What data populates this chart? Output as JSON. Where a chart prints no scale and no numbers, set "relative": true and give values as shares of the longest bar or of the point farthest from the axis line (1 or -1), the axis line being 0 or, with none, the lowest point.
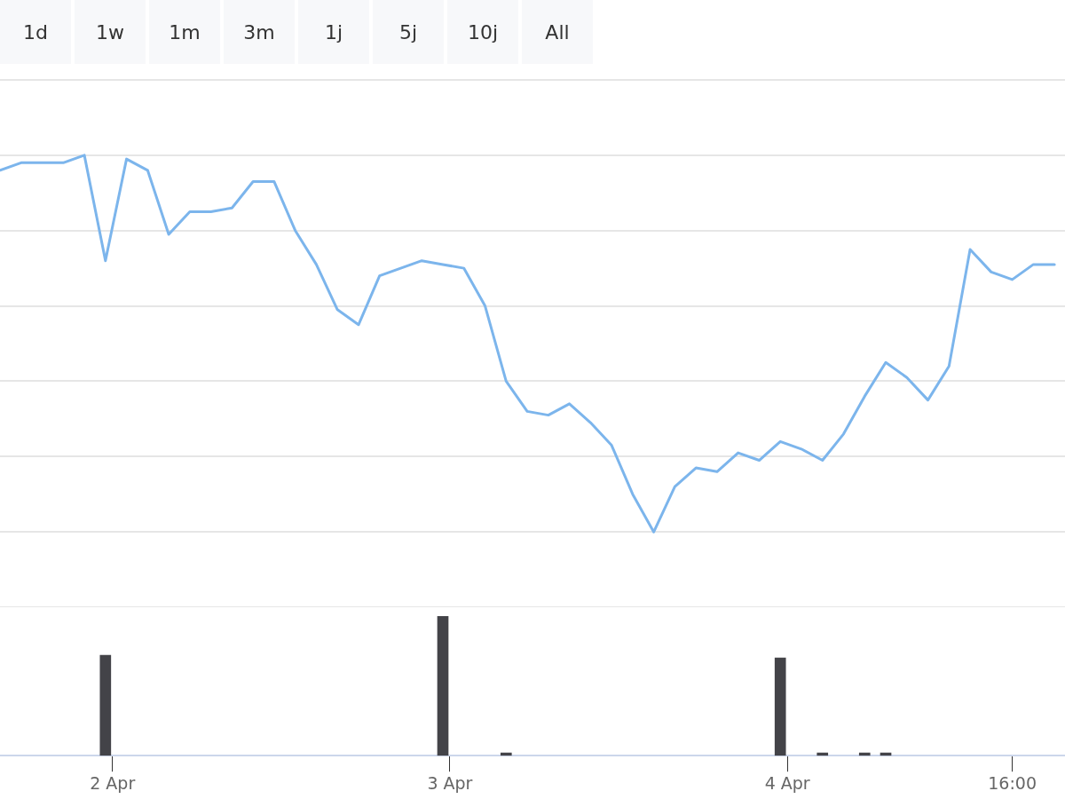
{
  "chart_data": [
    {
      "type": "line",
      "relative": true,
      "annotations": [
        "1d",
        "1w",
        "1m",
        "3m",
        "1j",
        "5j",
        "10j",
        "All"
      ],
      "xlim": [
        "--04-01T16:00",
        "--04-04T19:45"
      ],
      "tick_labels": false,
      "grid": "y",
      "x": [
        "--04-01T16:00",
        "--04-01T17:30",
        "--04-01T19:00",
        "--04-01T20:30",
        "--04-01T22:00",
        "--04-01T23:30",
        "--04-02T01:00",
        "--04-02T02:30",
        "--04-02T04:00",
        "--04-02T05:30",
        "--04-02T07:00",
        "--04-02T08:30",
        "--04-02T10:00",
        "--04-02T11:30",
        "--04-02T13:00",
        "--04-02T14:30",
        "--04-02T16:00",
        "--04-02T17:30",
        "--04-02T19:00",
        "--04-02T20:30",
        "--04-02T22:00",
        "--04-02T23:30",
        "--04-03T01:00",
        "--04-03T02:30",
        "--04-03T04:00",
        "--04-03T05:30",
        "--04-03T07:00",
        "--04-03T08:30",
        "--04-03T10:00",
        "--04-03T11:30",
        "--04-03T13:00",
        "--04-03T14:30",
        "--04-03T16:00",
        "--04-03T17:30",
        "--04-03T19:00",
        "--04-03T20:30",
        "--04-03T22:00",
        "--04-03T23:30",
        "--04-04T01:00",
        "--04-04T02:30",
        "--04-04T04:00",
        "--04-04T05:30",
        "--04-04T07:00",
        "--04-04T08:30",
        "--04-04T10:00",
        "--04-04T11:30",
        "--04-04T13:00",
        "--04-04T14:30",
        "--04-04T16:00",
        "--04-04T17:30",
        "--04-04T19:00"
      ],
      "series": [
        {
          "color": "#7cb5ec",
          "values": [
            0.96,
            0.98,
            0.98,
            0.98,
            1,
            0.72,
            0.99,
            0.96,
            0.79,
            0.85,
            0.85,
            0.86,
            0.93,
            0.93,
            0.8,
            0.71,
            0.59,
            0.55,
            0.68,
            0.7,
            0.72,
            0.71,
            0.7,
            0.6,
            0.4,
            0.32,
            0.31,
            0.34,
            0.29,
            0.23,
            0.1,
            0,
            0.12,
            0.17,
            0.16,
            0.21,
            0.19,
            0.24,
            0.22,
            0.19,
            0.26,
            0.36,
            0.45,
            0.41,
            0.35,
            0.44,
            0.75,
            0.69,
            0.67,
            0.71,
            0.71
          ]
        }
      ]
    },
    {
      "type": "bar",
      "relative": true,
      "xlim": [
        "--04-01T16:00",
        "--04-04T19:45"
      ],
      "xticks": [
        {
          "value": "--04-02",
          "label": "2 Apr"
        },
        {
          "value": "--04-03",
          "label": "3 Apr"
        },
        {
          "value": "--04-04",
          "label": "4 Apr"
        },
        {
          "value": "--04-04T16:00",
          "label": "16:00"
        }
      ],
      "x": [
        "--04-01T23:30",
        "--04-02T23:30",
        "--04-03T04:00",
        "--04-03T23:30",
        "--04-04T02:30",
        "--04-04T05:30",
        "--04-04T07:00"
      ],
      "series": [
        {
          "color": "#434348",
          "values": [
            0.72,
            1,
            0.02,
            0.7,
            0.02,
            0.02,
            0.02
          ]
        }
      ]
    }
  ]
}
